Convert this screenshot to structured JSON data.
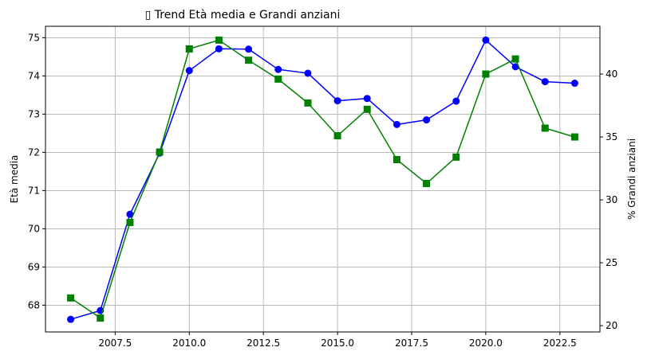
{
  "chart_data": {
    "type": "line",
    "title": "▯ Trend Età media e Grandi anziani",
    "ylabel": "Età media",
    "y2label": "% Grandi anziani",
    "x": [
      2006,
      2007,
      2008,
      2009,
      2010,
      2011,
      2012,
      2013,
      2014,
      2015,
      2016,
      2017,
      2018,
      2019,
      2020,
      2021,
      2022,
      2023
    ],
    "xlim": [
      2005.15,
      2023.85
    ],
    "ylim": [
      67.3,
      75.3
    ],
    "y2lim": [
      19.5,
      43.8
    ],
    "xticks": [
      2007.5,
      2010.0,
      2012.5,
      2015.0,
      2017.5,
      2020.0,
      2022.5
    ],
    "xtick_labels": [
      "2007.5",
      "2010.0",
      "2012.5",
      "2015.0",
      "2017.5",
      "2020.0",
      "2022.5"
    ],
    "yticks": [
      68,
      69,
      70,
      71,
      72,
      73,
      74,
      75
    ],
    "ytick_labels": [
      "68",
      "69",
      "70",
      "71",
      "72",
      "73",
      "74",
      "75"
    ],
    "y2ticks": [
      20,
      25,
      30,
      35,
      40
    ],
    "y2tick_labels": [
      "20",
      "25",
      "30",
      "35",
      "40"
    ],
    "grid": true,
    "series": [
      {
        "axis": "left",
        "color": "#0000ff",
        "marker": "circle",
        "values": [
          67.63,
          67.86,
          70.38,
          71.98,
          74.14,
          74.71,
          74.7,
          74.17,
          74.07,
          73.35,
          73.41,
          72.73,
          72.85,
          73.34,
          74.94,
          74.24,
          73.85,
          73.81
        ]
      },
      {
        "axis": "right",
        "color": "#008000",
        "marker": "square",
        "values": [
          22.2,
          20.6,
          28.2,
          33.8,
          42.0,
          42.7,
          41.1,
          39.6,
          37.7,
          35.1,
          37.2,
          33.2,
          31.3,
          33.4,
          40.0,
          41.2,
          35.7,
          35.0
        ]
      }
    ]
  }
}
